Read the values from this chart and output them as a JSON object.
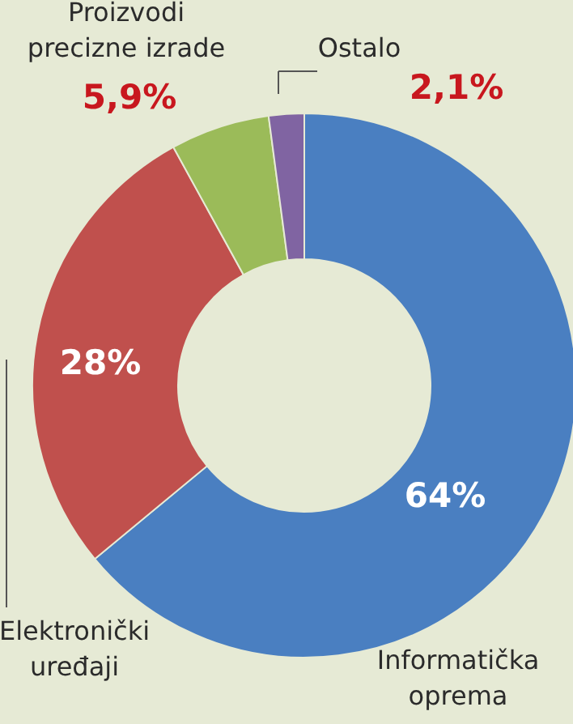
{
  "chart_data": {
    "type": "donut",
    "categories": [
      "Informatička oprema",
      "Elektronički uređaji",
      "Proizvodi precizne izrade",
      "Ostalo"
    ],
    "values": [
      64,
      28,
      5.9,
      2.1
    ],
    "value_labels": [
      "64%",
      "28%",
      "5,9%",
      "2,1%"
    ],
    "colors": [
      "#4a7fc1",
      "#c0504d",
      "#9bbb59",
      "#8064a2"
    ]
  }
}
